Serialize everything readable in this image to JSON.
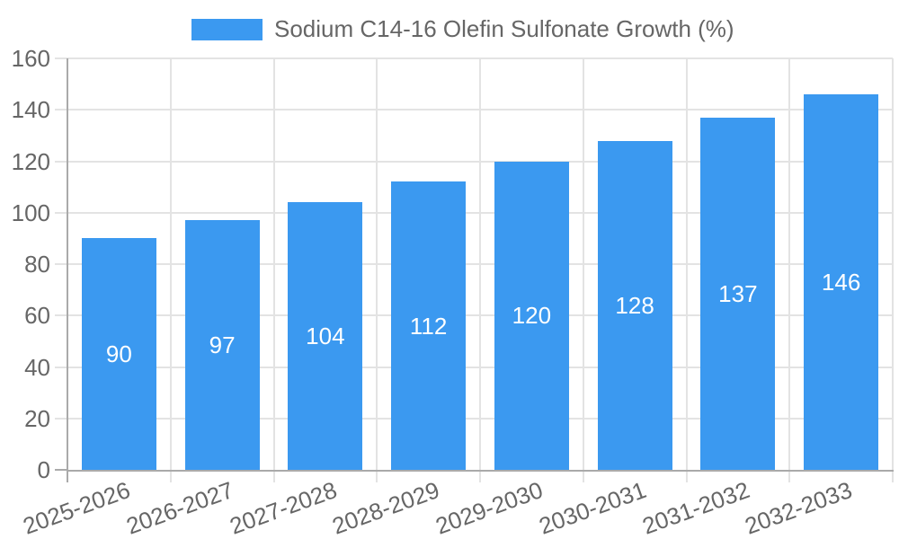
{
  "chart_data": {
    "type": "bar",
    "title": "Sodium C14-16 Olefin Sulfonate Growth (%)",
    "categories": [
      "2025-2026",
      "2026-2027",
      "2027-2028",
      "2028-2029",
      "2029-2030",
      "2030-2031",
      "2031-2032",
      "2032-2033"
    ],
    "values": [
      90,
      97,
      104,
      112,
      120,
      128,
      137,
      146
    ],
    "xlabel": "",
    "ylabel": "",
    "ylim": [
      0,
      160
    ],
    "yticks": [
      0,
      20,
      40,
      60,
      80,
      100,
      120,
      140,
      160
    ],
    "grid": true,
    "legend_position": "top-center",
    "colors": {
      "bar": "#3B99F0",
      "bar_value_text": "#FFFFFF",
      "axis_text": "#666666",
      "axis_line": "#AAAAAA",
      "gridline": "#E3E3E3",
      "background": "#FFFFFF"
    }
  }
}
